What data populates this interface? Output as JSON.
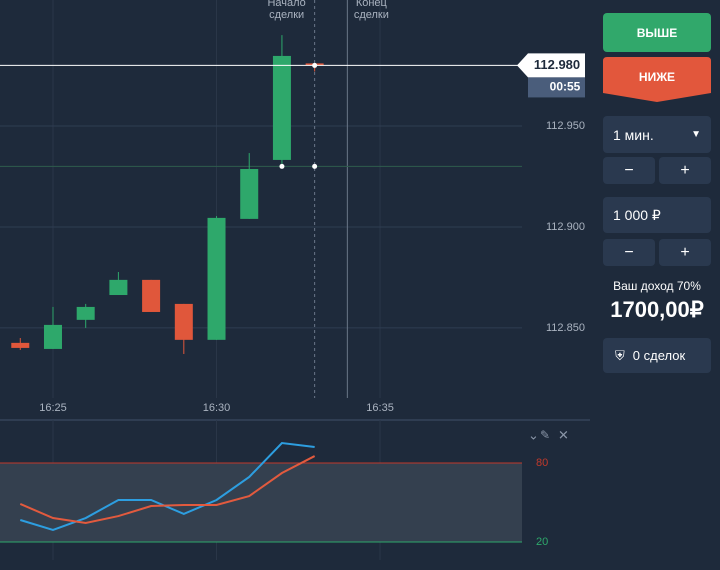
{
  "chart_data": [
    {
      "type": "candlestick",
      "x": [
        984,
        985,
        986,
        987,
        988,
        989,
        990,
        991,
        992,
        993
      ],
      "open": [
        112.8426,
        112.8396,
        112.854,
        112.8663,
        112.8738,
        112.8619,
        112.8441,
        112.904,
        112.9332,
        112.981
      ],
      "high": [
        112.845,
        112.8604,
        112.8619,
        112.8777,
        112.8738,
        112.8619,
        112.9054,
        112.9366,
        112.995,
        112.981
      ],
      "low": [
        112.8391,
        112.8396,
        112.85,
        112.8663,
        112.8579,
        112.8371,
        112.8441,
        112.904,
        112.9307,
        112.977
      ],
      "close": [
        112.8401,
        112.8515,
        112.8604,
        112.8738,
        112.8579,
        112.8441,
        112.9045,
        112.9287,
        112.9847,
        112.98
      ],
      "up_color": "#2ea86b",
      "down_color": "#e0573b",
      "xlim": [
        983.38,
        999.34
      ],
      "xticks": [
        {
          "value": 985,
          "label": "16:25"
        },
        {
          "value": 990,
          "label": "16:30"
        },
        {
          "value": 995,
          "label": "16:35"
        }
      ],
      "ylim": [
        112.8153,
        113.0124
      ],
      "yticks": [
        {
          "value": 112.85,
          "label": "112.850"
        },
        {
          "value": 112.9,
          "label": "112.900"
        },
        {
          "value": 112.95,
          "label": "112.950"
        }
      ],
      "grid": true,
      "annotations": [
        {
          "label": "Начало\nсделки",
          "x": 993
        },
        {
          "label": "Конец\nсделки",
          "x": 994
        }
      ],
      "price_line": {
        "value": 112.98,
        "label": "112.980",
        "timer": "00:55"
      },
      "entry_level": 112.93
    },
    {
      "type": "line",
      "x": [
        984,
        985,
        986,
        987,
        988,
        989,
        990,
        991,
        992,
        993
      ],
      "series": [
        {
          "color": "#2d9ee0",
          "values": [
            36.7,
            29.1,
            38.2,
            51.9,
            51.9,
            41.3,
            51.9,
            69.4,
            95.2,
            92.2
          ]
        },
        {
          "color": "#e25a3e",
          "values": [
            48.9,
            38.2,
            34.4,
            39.7,
            47.3,
            48.1,
            48.1,
            54.9,
            72.4,
            85.3
          ]
        }
      ],
      "xlim": [
        983.38,
        999.34
      ],
      "ylim": [
        6.3,
        112.7
      ],
      "yticks": [
        {
          "value": 20,
          "label": "20",
          "color": "#2ea86b"
        },
        {
          "value": 80,
          "label": "80",
          "color": "#c0392b"
        }
      ]
    }
  ],
  "panel": {
    "up_button": "ВЫШЕ",
    "down_button": "НИЖЕ",
    "duration": "1 мин.",
    "minus": "−",
    "plus": "+",
    "amount": "1 000 ₽",
    "income_label": "Ваш доход 70%",
    "income_value": "1700,00₽",
    "deals": "0 сделок"
  }
}
